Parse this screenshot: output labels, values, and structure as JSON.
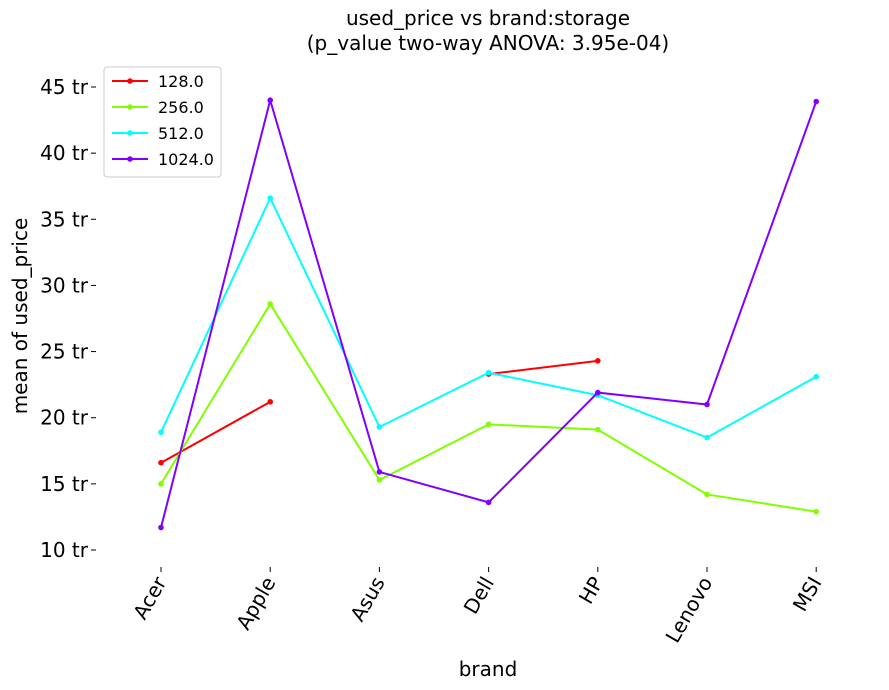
{
  "chart_data": {
    "type": "line",
    "title": "used_price vs brand:storage",
    "subtitle": "(p_value two-way ANOVA: 3.95e-04)",
    "xlabel": "brand",
    "ylabel": "mean of used_price",
    "categories": [
      "Acer",
      "Apple",
      "Asus",
      "Dell",
      "HP",
      "Lenovo",
      "MSI"
    ],
    "ylim": [
      9.0,
      46.5
    ],
    "y_ticks": [
      10,
      15,
      20,
      25,
      30,
      35,
      40,
      45
    ],
    "y_tick_labels": [
      "10 tr",
      "15 tr",
      "20 tr",
      "25 tr",
      "30 tr",
      "35 tr",
      "40 tr",
      "45 tr"
    ],
    "grid": false,
    "legend_position": "top-left",
    "series": [
      {
        "name": "128.0",
        "color": "#ff0000",
        "values": [
          16.6,
          21.2,
          null,
          23.3,
          24.3,
          null,
          null
        ]
      },
      {
        "name": "256.0",
        "color": "#80ff00",
        "values": [
          15.0,
          28.6,
          15.3,
          19.5,
          19.1,
          14.2,
          12.9
        ]
      },
      {
        "name": "512.0",
        "color": "#00ffff",
        "values": [
          18.9,
          36.6,
          19.3,
          23.4,
          21.7,
          18.5,
          23.1
        ]
      },
      {
        "name": "1024.0",
        "color": "#8000ff",
        "values": [
          11.7,
          44.0,
          15.9,
          13.6,
          21.9,
          21.0,
          43.9
        ]
      }
    ]
  }
}
